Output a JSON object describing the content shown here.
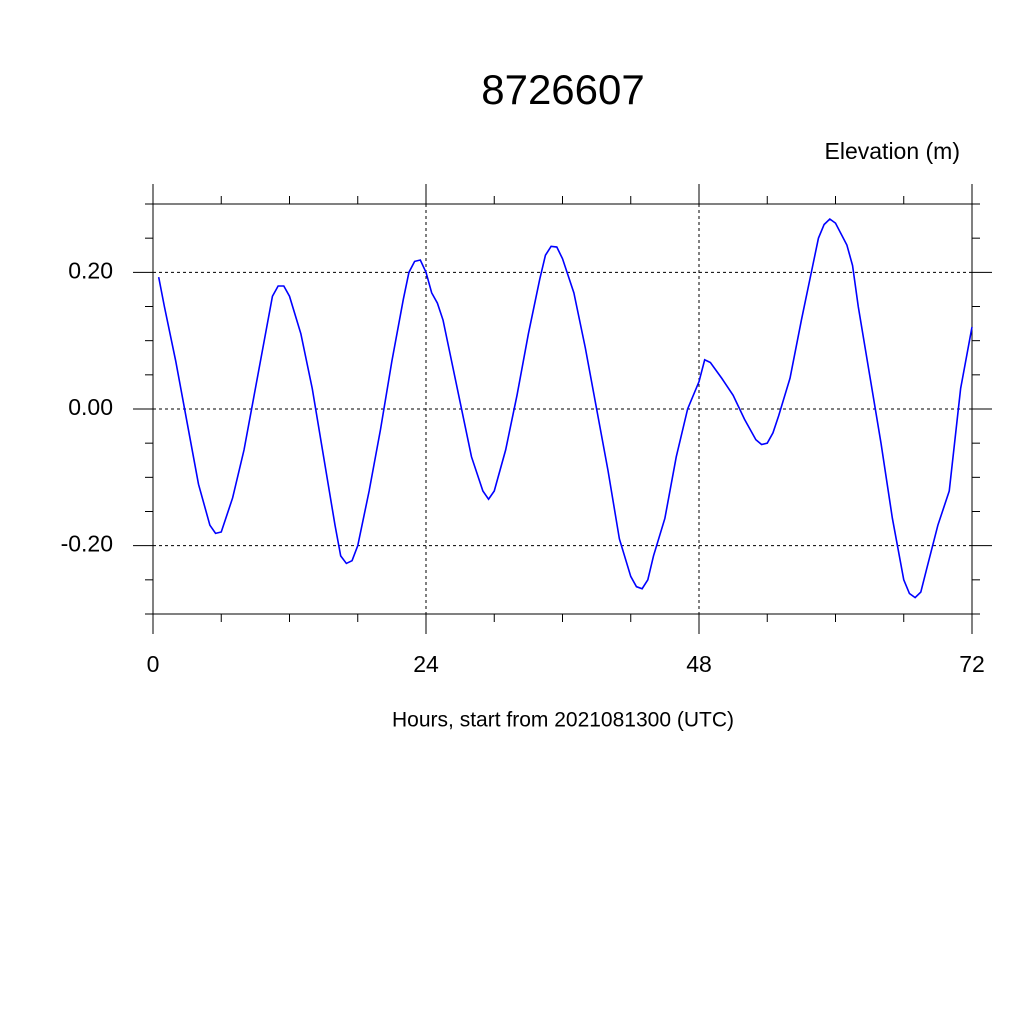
{
  "chart_data": {
    "type": "line",
    "title": "8726607",
    "y_label": "Elevation (m)",
    "x_label": "Hours, start from 2021081300 (UTC)",
    "xlim": [
      0,
      72
    ],
    "xticks": [
      0,
      24,
      48,
      72
    ],
    "ylim": [
      -0.3,
      0.3
    ],
    "yticks": [
      {
        "value": -0.2,
        "label": "-0.20"
      },
      {
        "value": 0,
        "label": "0.00"
      },
      {
        "value": 0.2,
        "label": "0.20"
      }
    ],
    "grid": true,
    "x": [
      0.5,
      1,
      2,
      3,
      4,
      5,
      5.5,
      6,
      7,
      8,
      9,
      10,
      10.5,
      11,
      11.5,
      12,
      13,
      14,
      15,
      16,
      16.5,
      17,
      17.5,
      18,
      19,
      20,
      21,
      22,
      22.5,
      23,
      23.5,
      24,
      24.5,
      25,
      25.5,
      26,
      27,
      28,
      29,
      29.5,
      30,
      31,
      32,
      33,
      34,
      34.5,
      35,
      35.5,
      36,
      37,
      38,
      39,
      40,
      41,
      42,
      42.5,
      43,
      43.5,
      44,
      45,
      46,
      47,
      48,
      48.5,
      49,
      50,
      51,
      52,
      53,
      53.5,
      54,
      54.5,
      55,
      56,
      57,
      58,
      58.5,
      59,
      59.5,
      60,
      61,
      61.5,
      62,
      63,
      64,
      65,
      66,
      66.5,
      67,
      67.5,
      68,
      69,
      70,
      71,
      72
    ],
    "series": [
      {
        "color": "#0000ff",
        "values": [
          0.193,
          0.15,
          0.07,
          -0.02,
          -0.11,
          -0.17,
          -0.182,
          -0.18,
          -0.13,
          -0.06,
          0.03,
          0.12,
          0.165,
          0.18,
          0.18,
          0.165,
          0.11,
          0.03,
          -0.07,
          -0.17,
          -0.215,
          -0.226,
          -0.222,
          -0.2,
          -0.12,
          -0.03,
          0.07,
          0.16,
          0.2,
          0.216,
          0.218,
          0.2,
          0.17,
          0.155,
          0.13,
          0.09,
          0.01,
          -0.07,
          -0.12,
          -0.132,
          -0.12,
          -0.06,
          0.02,
          0.11,
          0.19,
          0.225,
          0.238,
          0.237,
          0.22,
          0.17,
          0.09,
          0.0,
          -0.09,
          -0.19,
          -0.245,
          -0.26,
          -0.263,
          -0.25,
          -0.215,
          -0.16,
          -0.07,
          0.0,
          0.04,
          0.072,
          0.068,
          0.045,
          0.02,
          -0.015,
          -0.045,
          -0.052,
          -0.05,
          -0.035,
          -0.01,
          0.045,
          0.13,
          0.21,
          0.25,
          0.27,
          0.278,
          0.272,
          0.24,
          0.21,
          0.15,
          0.05,
          -0.05,
          -0.16,
          -0.25,
          -0.27,
          -0.276,
          -0.268,
          -0.235,
          -0.17,
          -0.12,
          0.03,
          0.12
        ]
      }
    ]
  }
}
